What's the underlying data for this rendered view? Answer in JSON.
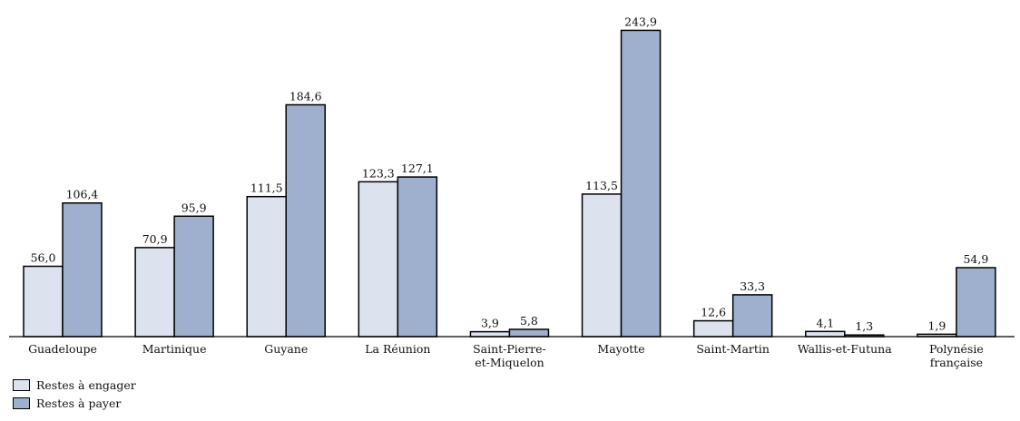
{
  "chart_data": {
    "type": "bar",
    "title": "",
    "xlabel": "",
    "ylabel": "",
    "ylim": [
      0,
      250
    ],
    "grid": false,
    "legend_position": "bottom-left",
    "categories": [
      [
        "Guadeloupe"
      ],
      [
        "Martinique"
      ],
      [
        "Guyane"
      ],
      [
        "La Réunion"
      ],
      [
        "Saint-Pierre-",
        "et-Miquelon"
      ],
      [
        "Mayotte"
      ],
      [
        "Saint-Martin"
      ],
      [
        "Wallis-et-Futuna"
      ],
      [
        "Polynésie",
        "française"
      ]
    ],
    "series": [
      {
        "name": "Restes à engager",
        "color": "#dde3ee",
        "values": [
          56.0,
          70.9,
          111.5,
          123.3,
          3.9,
          113.5,
          12.6,
          4.1,
          1.9
        ],
        "labels": [
          "56,0",
          "70,9",
          "111,5",
          "123,3",
          "3,9",
          "113,5",
          "12,6",
          "4,1",
          "1,9"
        ]
      },
      {
        "name": "Restes à payer",
        "color": "#9eb0cd",
        "values": [
          106.4,
          95.9,
          184.6,
          127.1,
          5.8,
          243.9,
          33.3,
          1.3,
          54.9
        ],
        "labels": [
          "106,4",
          "95,9",
          "184,6",
          "127,1",
          "5,8",
          "243,9",
          "33,3",
          "1,3",
          "54,9"
        ]
      }
    ]
  },
  "legend": {
    "items": [
      {
        "label": "Restes à engager",
        "color": "#dde3ee"
      },
      {
        "label": "Restes à payer",
        "color": "#9eb0cd"
      }
    ]
  }
}
